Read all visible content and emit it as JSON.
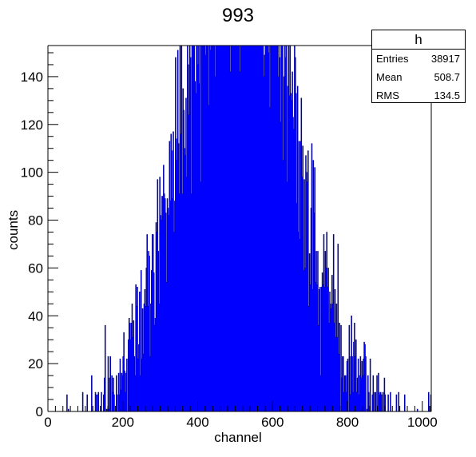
{
  "title": "993",
  "stats_box": {
    "name": "h",
    "rows": [
      {
        "key": "Entries",
        "value": "38917"
      },
      {
        "key": "Mean",
        "value": "508.7"
      },
      {
        "key": "RMS",
        "value": "134.5"
      }
    ]
  },
  "colors": {
    "fill": "#0000ff",
    "line": "#000080",
    "axis": "#000000"
  },
  "chart_data": {
    "type": "bar",
    "histogram": true,
    "title": "993",
    "xlabel": "channel",
    "ylabel": "counts",
    "xlim": [
      0,
      1024
    ],
    "ylim": [
      0,
      153
    ],
    "x_ticks": [
      0,
      200,
      400,
      600,
      800,
      1000
    ],
    "y_ticks": [
      0,
      20,
      40,
      60,
      80,
      100,
      120,
      140
    ],
    "bin_width": 2,
    "grid": false,
    "legend": "none",
    "entries": 38917,
    "mean": 508.7,
    "rms": 134.5
  }
}
